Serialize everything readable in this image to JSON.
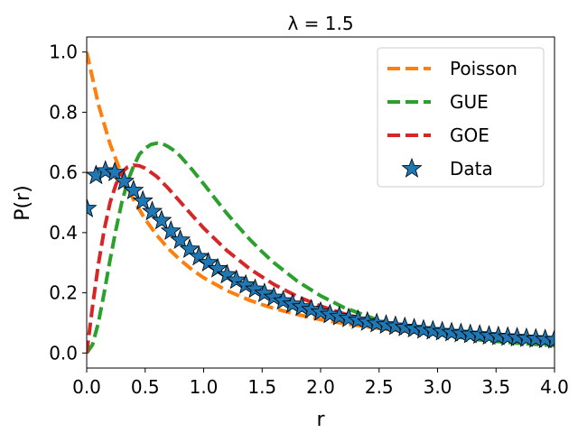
{
  "chart_data": {
    "type": "line",
    "title": "λ = 1.5",
    "xlabel": "r",
    "ylabel": "P(r)",
    "xlim": [
      0.0,
      4.0
    ],
    "ylim": [
      -0.05,
      1.05
    ],
    "xticks": [
      0.0,
      0.5,
      1.0,
      1.5,
      2.0,
      2.5,
      3.0,
      3.5,
      4.0
    ],
    "xtick_labels": [
      "0.0",
      "0.5",
      "1.0",
      "1.5",
      "2.0",
      "2.5",
      "3.0",
      "3.5",
      "4.0"
    ],
    "yticks": [
      0.0,
      0.2,
      0.4,
      0.6,
      0.8,
      1.0
    ],
    "ytick_labels": [
      "0.0",
      "0.2",
      "0.4",
      "0.6",
      "0.8",
      "1.0"
    ],
    "legend_position": "top-right",
    "series": [
      {
        "name": "Poisson",
        "style": "dashed",
        "color": "#ff7f0e",
        "x": [
          0.0,
          0.1,
          0.2,
          0.3,
          0.4,
          0.5,
          0.6,
          0.7,
          0.8,
          0.9,
          1.0,
          1.2,
          1.4,
          1.6,
          1.8,
          2.0,
          2.2,
          2.5,
          2.8,
          3.0,
          3.3,
          3.6,
          4.0
        ],
        "y": [
          1.0,
          0.826,
          0.694,
          0.592,
          0.51,
          0.444,
          0.391,
          0.346,
          0.309,
          0.277,
          0.25,
          0.207,
          0.174,
          0.148,
          0.128,
          0.111,
          0.098,
          0.082,
          0.069,
          0.0625,
          0.054,
          0.047,
          0.04
        ]
      },
      {
        "name": "GUE",
        "style": "dashed",
        "color": "#2ca02c",
        "x": [
          0.0,
          0.05,
          0.1,
          0.15,
          0.2,
          0.25,
          0.3,
          0.35,
          0.4,
          0.45,
          0.5,
          0.55,
          0.6,
          0.65,
          0.7,
          0.75,
          0.8,
          0.9,
          1.0,
          1.1,
          1.2,
          1.3,
          1.4,
          1.5,
          1.6,
          1.8,
          2.0,
          2.2,
          2.5,
          2.8,
          3.0,
          3.3,
          3.6,
          4.0
        ],
        "y": [
          0.0,
          0.028,
          0.101,
          0.201,
          0.31,
          0.41,
          0.5,
          0.57,
          0.62,
          0.66,
          0.68,
          0.693,
          0.697,
          0.695,
          0.685,
          0.672,
          0.654,
          0.61,
          0.562,
          0.512,
          0.463,
          0.418,
          0.375,
          0.336,
          0.3,
          0.239,
          0.19,
          0.151,
          0.108,
          0.078,
          0.063,
          0.046,
          0.035,
          0.025
        ]
      },
      {
        "name": "GOE",
        "style": "dashed",
        "color": "#d62728",
        "x": [
          0.0,
          0.05,
          0.1,
          0.15,
          0.2,
          0.25,
          0.3,
          0.35,
          0.4,
          0.45,
          0.5,
          0.55,
          0.6,
          0.7,
          0.8,
          0.9,
          1.0,
          1.2,
          1.4,
          1.6,
          1.8,
          2.0,
          2.2,
          2.5,
          2.8,
          3.0,
          3.3,
          3.6,
          4.0
        ],
        "y": [
          0.0,
          0.155,
          0.295,
          0.41,
          0.5,
          0.56,
          0.6,
          0.618,
          0.624,
          0.622,
          0.614,
          0.6,
          0.586,
          0.546,
          0.502,
          0.458,
          0.415,
          0.34,
          0.278,
          0.228,
          0.188,
          0.156,
          0.13,
          0.101,
          0.08,
          0.068,
          0.055,
          0.045,
          0.034
        ]
      },
      {
        "name": "Data",
        "style": "star-markers",
        "color": "#1f77b4",
        "x": [
          0.0,
          0.08,
          0.16,
          0.24,
          0.32,
          0.4,
          0.48,
          0.56,
          0.64,
          0.72,
          0.8,
          0.88,
          0.96,
          1.04,
          1.12,
          1.2,
          1.28,
          1.36,
          1.44,
          1.52,
          1.6,
          1.68,
          1.76,
          1.84,
          1.92,
          2.0,
          2.08,
          2.16,
          2.24,
          2.32,
          2.4,
          2.48,
          2.56,
          2.64,
          2.72,
          2.8,
          2.88,
          2.96,
          3.04,
          3.12,
          3.2,
          3.28,
          3.36,
          3.44,
          3.52,
          3.6,
          3.68,
          3.76,
          3.84,
          3.92,
          4.0
        ],
        "y": [
          0.48,
          0.59,
          0.605,
          0.6,
          0.57,
          0.54,
          0.505,
          0.47,
          0.44,
          0.405,
          0.375,
          0.345,
          0.32,
          0.3,
          0.28,
          0.26,
          0.242,
          0.226,
          0.212,
          0.198,
          0.185,
          0.173,
          0.162,
          0.153,
          0.144,
          0.136,
          0.128,
          0.121,
          0.115,
          0.109,
          0.103,
          0.098,
          0.093,
          0.089,
          0.085,
          0.081,
          0.077,
          0.074,
          0.071,
          0.068,
          0.065,
          0.062,
          0.06,
          0.057,
          0.055,
          0.053,
          0.051,
          0.049,
          0.047,
          0.045,
          0.044
        ]
      }
    ]
  }
}
